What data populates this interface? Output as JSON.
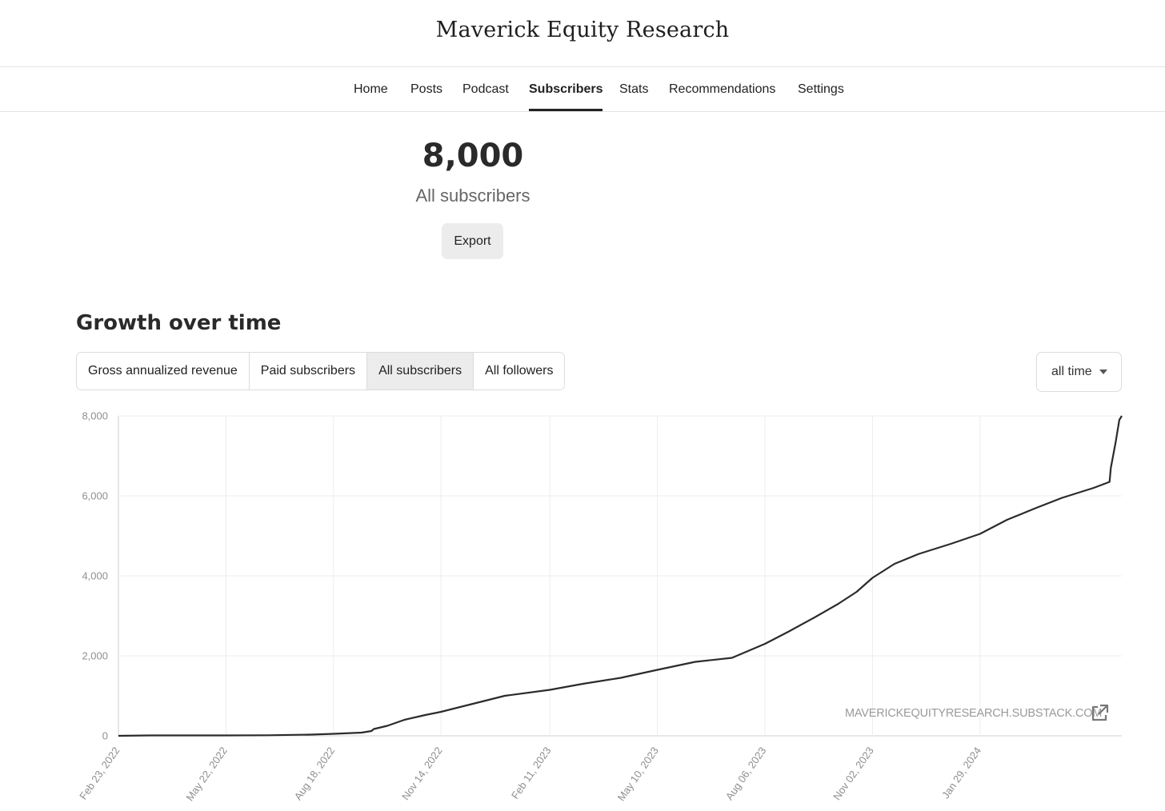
{
  "site": {
    "title": "Maverick Equity Research"
  },
  "nav": {
    "items": [
      {
        "label": "Home",
        "active": false
      },
      {
        "label": "Posts",
        "active": false
      },
      {
        "label": "Podcast",
        "active": false
      },
      {
        "label": "Subscribers",
        "active": true
      },
      {
        "label": "Stats",
        "active": false
      },
      {
        "label": "Recommendations",
        "active": false
      },
      {
        "label": "Settings",
        "active": false
      }
    ]
  },
  "summary": {
    "count": "8,000",
    "label": "All subscribers",
    "export_label": "Export"
  },
  "growth": {
    "title": "Growth over time",
    "tabs": [
      {
        "label": "Gross annualized revenue",
        "active": false
      },
      {
        "label": "Paid subscribers",
        "active": false
      },
      {
        "label": "All subscribers",
        "active": true
      },
      {
        "label": "All followers",
        "active": false
      }
    ],
    "range": {
      "selected": "all time"
    },
    "watermark": "MAVERICKEQUITYRESEARCH.SUBSTACK.COM"
  },
  "icons": {
    "external_link": "external-link-icon",
    "dropdown": "caret-down-icon"
  },
  "colors": {
    "line": "#2b2b2b",
    "grid": "#ededed",
    "axis_text": "#8f8f8f",
    "active_tab": "#ececec"
  },
  "chart_data": {
    "type": "line",
    "title": "",
    "xlabel": "",
    "ylabel": "",
    "ylim": [
      0,
      8000
    ],
    "yticks": [
      0,
      2000,
      4000,
      6000,
      8000
    ],
    "ytick_labels": [
      "0",
      "2,000",
      "4,000",
      "6,000",
      "8,000"
    ],
    "xlim": [
      "2022-02-23",
      "2024-05-24"
    ],
    "xticks": [
      "2022-02-23",
      "2022-05-22",
      "2022-08-18",
      "2022-11-14",
      "2023-02-11",
      "2023-05-10",
      "2023-08-06",
      "2023-11-02",
      "2024-01-29"
    ],
    "xtick_labels": [
      "Feb 23, 2022",
      "May 22, 2022",
      "Aug 18, 2022",
      "Nov 14, 2022",
      "Feb 11, 2023",
      "May 10, 2023",
      "Aug 06, 2023",
      "Nov 02, 2023",
      "Jan 29, 2024"
    ],
    "grid": true,
    "series": [
      {
        "x": [
          "2022-02-23",
          "2022-03-20",
          "2022-05-22",
          "2022-06-25",
          "2022-07-30",
          "2022-08-18",
          "2022-09-10",
          "2022-09-18",
          "2022-09-20",
          "2022-10-01",
          "2022-10-15",
          "2022-11-01",
          "2022-11-14",
          "2022-12-10",
          "2023-01-05",
          "2023-02-11",
          "2023-03-10",
          "2023-04-10",
          "2023-05-10",
          "2023-06-10",
          "2023-07-10",
          "2023-08-06",
          "2023-08-25",
          "2023-09-15",
          "2023-10-05",
          "2023-10-20",
          "2023-11-02",
          "2023-11-20",
          "2023-12-10",
          "2024-01-05",
          "2024-01-29",
          "2024-02-20",
          "2024-03-15",
          "2024-04-05",
          "2024-05-01",
          "2024-05-14",
          "2024-05-15",
          "2024-05-19",
          "2024-05-22",
          "2024-05-24"
        ],
        "values": [
          0,
          10,
          10,
          15,
          30,
          50,
          80,
          120,
          170,
          250,
          400,
          520,
          600,
          800,
          1000,
          1150,
          1300,
          1450,
          1650,
          1850,
          1950,
          2300,
          2600,
          2950,
          3300,
          3600,
          3950,
          4300,
          4550,
          4800,
          5050,
          5400,
          5700,
          5950,
          6200,
          6350,
          6700,
          7350,
          7900,
          8000
        ]
      }
    ]
  }
}
